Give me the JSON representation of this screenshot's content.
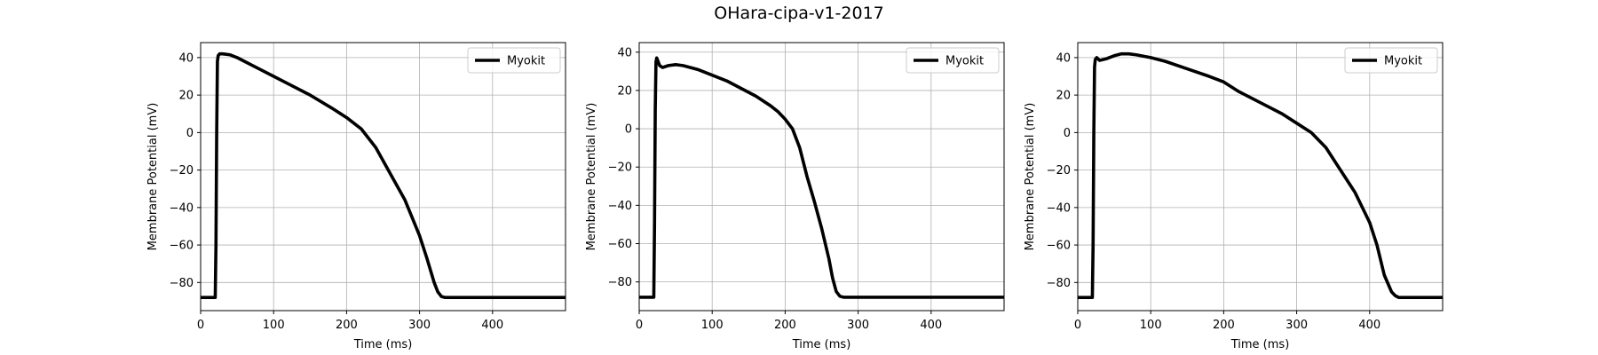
{
  "figure": {
    "title": "OHara-cipa-v1-2017"
  },
  "chart_data": [
    {
      "type": "line",
      "title": "",
      "xlabel": "Time (ms)",
      "ylabel": "Membrane Potential (mV)",
      "xlim": [
        0,
        500
      ],
      "ylim": [
        -95,
        48
      ],
      "xticks": [
        0,
        100,
        200,
        300,
        400
      ],
      "yticks": [
        40,
        20,
        0,
        -20,
        -40,
        -60,
        -80
      ],
      "grid": true,
      "legend": {
        "position": "upper-right",
        "entries": [
          "Myokit"
        ]
      },
      "series": [
        {
          "name": "Myokit",
          "color": "#000000",
          "x": [
            0,
            20,
            21,
            22,
            23,
            24,
            26,
            30,
            40,
            50,
            60,
            80,
            100,
            120,
            150,
            180,
            200,
            220,
            240,
            260,
            280,
            300,
            310,
            320,
            325,
            330,
            335,
            340,
            350,
            400,
            500
          ],
          "y": [
            -88,
            -88,
            -60,
            0,
            38,
            41,
            42,
            42,
            41.5,
            40,
            38,
            34,
            30,
            26,
            20,
            13,
            8,
            2,
            -8,
            -22,
            -36,
            -55,
            -67,
            -80,
            -85,
            -87.5,
            -88,
            -88,
            -88,
            -88,
            -88
          ]
        }
      ]
    },
    {
      "type": "line",
      "title": "",
      "xlabel": "Time (ms)",
      "ylabel": "Membrane Potential (mV)",
      "xlim": [
        0,
        500
      ],
      "ylim": [
        -95,
        45
      ],
      "xticks": [
        0,
        100,
        200,
        300,
        400
      ],
      "yticks": [
        40,
        20,
        0,
        -20,
        -40,
        -60,
        -80
      ],
      "grid": true,
      "legend": {
        "position": "upper-right",
        "entries": [
          "Myokit"
        ]
      },
      "series": [
        {
          "name": "Myokit",
          "color": "#000000",
          "x": [
            0,
            20,
            21,
            22,
            23,
            24,
            25,
            28,
            32,
            40,
            50,
            60,
            80,
            100,
            120,
            140,
            160,
            180,
            190,
            200,
            210,
            220,
            230,
            240,
            250,
            260,
            265,
            270,
            275,
            280,
            290,
            300,
            500
          ],
          "y": [
            -88,
            -88,
            -50,
            10,
            35,
            37,
            36,
            33,
            32,
            33,
            33.5,
            33,
            31,
            28,
            25,
            21,
            17,
            12,
            9,
            5,
            0,
            -10,
            -25,
            -38,
            -52,
            -68,
            -78,
            -85,
            -87.5,
            -88,
            -88,
            -88,
            -88
          ]
        }
      ]
    },
    {
      "type": "line",
      "title": "",
      "xlabel": "Time (ms)",
      "ylabel": "Membrane Potential (mV)",
      "xlim": [
        0,
        500
      ],
      "ylim": [
        -95,
        48
      ],
      "xticks": [
        0,
        100,
        200,
        300,
        400
      ],
      "yticks": [
        40,
        20,
        0,
        -20,
        -40,
        -60,
        -80
      ],
      "grid": true,
      "legend": {
        "position": "upper-right",
        "entries": [
          "Myokit"
        ]
      },
      "series": [
        {
          "name": "Myokit",
          "color": "#000000",
          "x": [
            0,
            20,
            21,
            22,
            23,
            24,
            26,
            30,
            40,
            50,
            60,
            70,
            80,
            100,
            120,
            150,
            180,
            200,
            220,
            250,
            280,
            300,
            320,
            340,
            360,
            380,
            400,
            410,
            420,
            430,
            435,
            440,
            450,
            500
          ],
          "y": [
            -88,
            -88,
            -60,
            0,
            35,
            39,
            40,
            38.5,
            39.5,
            41,
            42,
            42,
            41.5,
            40,
            38,
            34,
            30,
            27,
            22,
            16,
            10,
            5,
            0,
            -8,
            -20,
            -32,
            -48,
            -60,
            -76,
            -85,
            -87,
            -88,
            -88,
            -88
          ]
        }
      ]
    }
  ]
}
